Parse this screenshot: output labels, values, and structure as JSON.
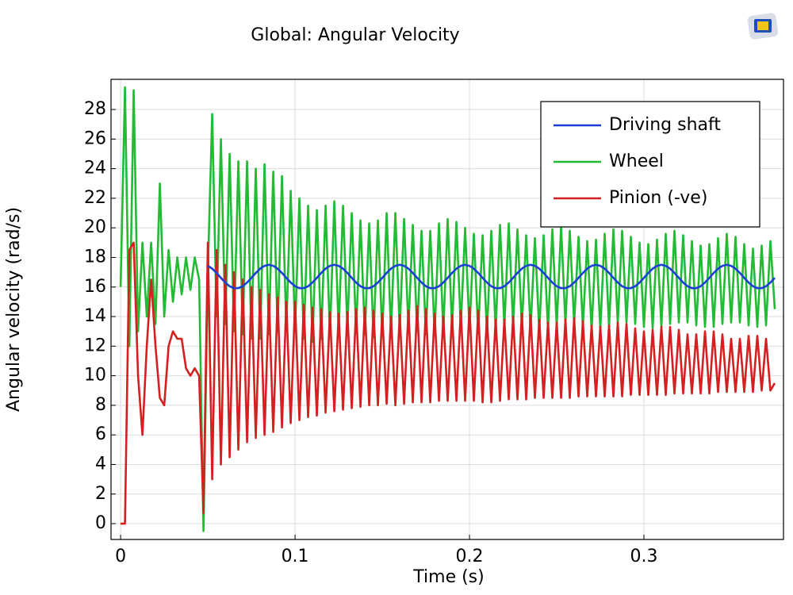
{
  "chart_data": {
    "type": "line",
    "title": "Global: Angular Velocity",
    "xlabel": "Time (s)",
    "ylabel": "Angular velocity (rad/s)",
    "x": [
      0,
      0.0025,
      0.005,
      0.0075,
      0.01,
      0.0125,
      0.015,
      0.0175,
      0.02,
      0.0225,
      0.025,
      0.0275,
      0.03,
      0.0325,
      0.035,
      0.0375,
      0.04,
      0.0425,
      0.045,
      0.0475,
      0.05,
      0.0525,
      0.055,
      0.0575,
      0.06,
      0.0625,
      0.065,
      0.0675,
      0.07,
      0.0725,
      0.075,
      0.0775,
      0.08,
      0.0825,
      0.085,
      0.0875,
      0.09,
      0.0925,
      0.095,
      0.0975,
      0.1,
      0.1025,
      0.105,
      0.1075,
      0.11,
      0.1125,
      0.115,
      0.1175,
      0.12,
      0.1225,
      0.125,
      0.1275,
      0.13,
      0.1325,
      0.135,
      0.1375,
      0.14,
      0.1425,
      0.145,
      0.1475,
      0.15,
      0.1525,
      0.155,
      0.1575,
      0.16,
      0.1625,
      0.165,
      0.1675,
      0.17,
      0.1725,
      0.175,
      0.1775,
      0.18,
      0.1825,
      0.185,
      0.1875,
      0.19,
      0.1925,
      0.195,
      0.1975,
      0.2,
      0.2025,
      0.205,
      0.2075,
      0.21,
      0.2125,
      0.215,
      0.2175,
      0.22,
      0.2225,
      0.225,
      0.2275,
      0.23,
      0.2325,
      0.235,
      0.2375,
      0.24,
      0.2425,
      0.245,
      0.2475,
      0.25,
      0.2525,
      0.255,
      0.2575,
      0.26,
      0.2625,
      0.265,
      0.2675,
      0.27,
      0.2725,
      0.275,
      0.2775,
      0.28,
      0.2825,
      0.285,
      0.2875,
      0.29,
      0.2925,
      0.295,
      0.2975,
      0.3,
      0.3025,
      0.305,
      0.3075,
      0.31,
      0.3125,
      0.315,
      0.3175,
      0.32,
      0.3225,
      0.325,
      0.3275,
      0.33,
      0.3325,
      0.335,
      0.3375,
      0.34,
      0.3425,
      0.345,
      0.3475,
      0.35,
      0.3525,
      0.355,
      0.3575,
      0.36,
      0.3625,
      0.365,
      0.3675,
      0.37,
      0.3725,
      0.375
    ],
    "series": [
      {
        "name": "Driving shaft",
        "color": "#1a3fd6",
        "values": [
          null,
          null,
          null,
          null,
          null,
          null,
          null,
          null,
          null,
          null,
          null,
          null,
          null,
          null,
          null,
          null,
          null,
          null,
          null,
          null,
          17.43,
          17.24,
          16.95,
          16.62,
          16.3,
          16.05,
          15.92,
          15.92,
          16.05,
          16.3,
          16.62,
          16.95,
          17.24,
          17.43,
          17.5,
          17.43,
          17.24,
          16.95,
          16.62,
          16.3,
          16.05,
          15.92,
          15.92,
          16.05,
          16.3,
          16.62,
          16.95,
          17.24,
          17.43,
          17.5,
          17.43,
          17.24,
          16.95,
          16.62,
          16.3,
          16.05,
          15.92,
          15.92,
          16.05,
          16.3,
          16.62,
          16.95,
          17.24,
          17.43,
          17.5,
          17.43,
          17.24,
          16.95,
          16.62,
          16.3,
          16.05,
          15.92,
          15.92,
          16.05,
          16.3,
          16.62,
          16.95,
          17.24,
          17.43,
          17.5,
          17.43,
          17.24,
          16.95,
          16.62,
          16.3,
          16.05,
          15.92,
          15.92,
          16.05,
          16.3,
          16.62,
          16.95,
          17.24,
          17.43,
          17.5,
          17.43,
          17.24,
          16.95,
          16.62,
          16.3,
          16.05,
          15.92,
          15.92,
          16.05,
          16.3,
          16.62,
          16.95,
          17.24,
          17.43,
          17.5,
          17.43,
          17.24,
          16.95,
          16.62,
          16.3,
          16.05,
          15.92,
          15.92,
          16.05,
          16.3,
          16.62,
          16.95,
          17.24,
          17.43,
          17.5,
          17.43,
          17.24,
          16.95,
          16.62,
          16.3,
          16.05,
          15.92,
          15.92,
          16.05,
          16.3,
          16.62,
          16.95,
          17.24,
          17.43,
          17.5,
          17.43,
          17.24,
          16.95,
          16.62,
          16.3,
          16.05,
          15.92,
          15.92,
          16.05,
          16.3,
          16.62
        ]
      },
      {
        "name": "Wheel",
        "color": "#22bb33",
        "values": [
          16,
          29.5,
          12,
          29.3,
          13,
          19,
          14,
          19,
          13.5,
          23,
          14,
          18.5,
          15,
          18,
          15.5,
          18,
          15.8,
          18,
          16.5,
          -0.5,
          17,
          27.7,
          14,
          26,
          13.5,
          25,
          13,
          24.5,
          12.8,
          24.5,
          12.5,
          24,
          12.5,
          24.3,
          12.8,
          23.8,
          13,
          23.5,
          13.2,
          22.5,
          13,
          22,
          12.5,
          21.5,
          12.3,
          21.2,
          12.5,
          21.5,
          12.7,
          21.8,
          13,
          21.5,
          13.2,
          21,
          13,
          20.5,
          12.8,
          20.3,
          12.6,
          20.5,
          12.7,
          21,
          12.9,
          21,
          13.1,
          20.6,
          13.2,
          20.2,
          13,
          19.8,
          12.8,
          19.8,
          12.8,
          20.3,
          13,
          20.6,
          13.2,
          20.4,
          13.3,
          20,
          13.1,
          19.6,
          12.9,
          19.5,
          12.9,
          19.8,
          13.1,
          20.2,
          13.3,
          20.3,
          13.4,
          19.9,
          13.3,
          19.5,
          13.1,
          19.3,
          13,
          19.5,
          13.1,
          19.9,
          13.3,
          20.1,
          13.5,
          19.8,
          13.5,
          19.4,
          13.3,
          19.1,
          13.1,
          19.2,
          13.1,
          19.6,
          13.3,
          19.9,
          13.5,
          19.8,
          13.6,
          19.4,
          13.5,
          19,
          13.3,
          18.9,
          13.2,
          19.2,
          13.3,
          19.6,
          13.5,
          19.8,
          13.6,
          19.5,
          13.6,
          19.1,
          13.4,
          18.8,
          13.3,
          18.9,
          13.3,
          19.3,
          13.5,
          19.6,
          13.6,
          19.4,
          13.6,
          18.9,
          13.4,
          18.6,
          13.3,
          18.8,
          13.4,
          19.1,
          14.5
        ]
      },
      {
        "name": "Pinion (-ve)",
        "color": "#d42020",
        "values": [
          0,
          0,
          18.5,
          19,
          10,
          6,
          12,
          16.5,
          12,
          8.5,
          8,
          12,
          13,
          12.5,
          12.5,
          10.5,
          10,
          10.5,
          10,
          0.7,
          19,
          3,
          18.5,
          4,
          17.5,
          4.5,
          17,
          5,
          16.5,
          5.5,
          16,
          5.8,
          15.8,
          6,
          15.5,
          6.2,
          15.3,
          6.5,
          15,
          6.8,
          15,
          7,
          14.8,
          7.2,
          14.6,
          7.3,
          14.5,
          7.5,
          14.3,
          7.6,
          14.2,
          7.7,
          14.3,
          7.8,
          14.5,
          7.9,
          14.6,
          8,
          14.4,
          8,
          14.2,
          8.1,
          14,
          8,
          14.1,
          8.1,
          14.4,
          8.2,
          14.7,
          8.2,
          14.5,
          8.2,
          14.2,
          8.3,
          14,
          8.3,
          14.1,
          8.3,
          14.4,
          8.3,
          14.6,
          8.3,
          14.4,
          8.2,
          14,
          8.2,
          13.8,
          8.3,
          13.8,
          8.4,
          14,
          8.4,
          14.2,
          8.4,
          14.1,
          8.5,
          13.8,
          8.5,
          13.6,
          8.5,
          13.6,
          8.5,
          13.8,
          8.5,
          13.9,
          8.6,
          13.7,
          8.6,
          13.4,
          8.6,
          13.3,
          8.6,
          13.4,
          8.6,
          13.6,
          8.6,
          13.5,
          8.7,
          13.2,
          8.7,
          13,
          8.7,
          13.1,
          8.7,
          13.3,
          8.7,
          13.3,
          8.8,
          13.1,
          8.8,
          12.8,
          8.8,
          12.8,
          8.8,
          13,
          8.8,
          13,
          8.9,
          12.8,
          8.9,
          12.5,
          8.9,
          12.5,
          8.9,
          12.7,
          8.9,
          12.7,
          9,
          12.5,
          9,
          9.5
        ]
      }
    ],
    "xlim": [
      -0.0055,
      0.38
    ],
    "ylim": [
      -1.07,
      30.04
    ],
    "xticks": [
      0,
      0.1,
      0.2,
      0.3
    ],
    "yticks": [
      0,
      2,
      4,
      6,
      8,
      10,
      12,
      14,
      16,
      18,
      20,
      22,
      24,
      26,
      28
    ],
    "grid": true,
    "legend": "upper right"
  }
}
